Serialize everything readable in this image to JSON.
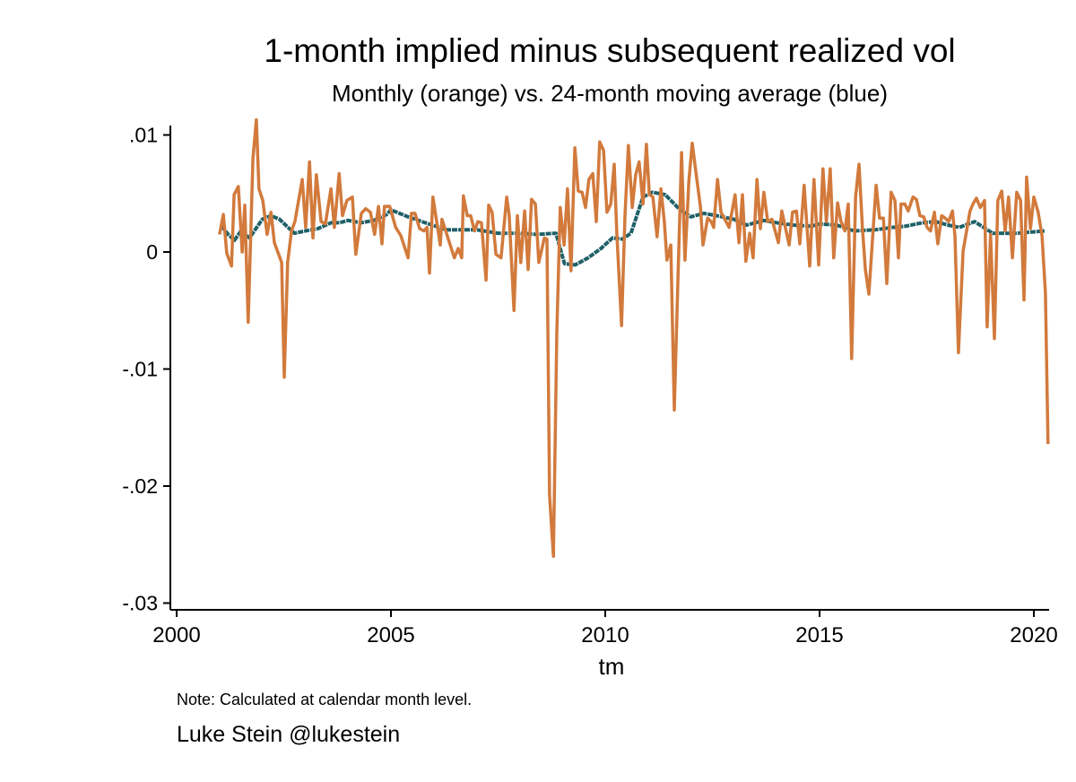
{
  "chart_data": {
    "type": "line",
    "title": "1-month implied minus subsequent realized vol",
    "subtitle": "Monthly (orange) vs. 24-month moving average (blue)",
    "xlabel": "tm",
    "ylabel": "",
    "xlim": [
      2000,
      2020.35
    ],
    "ylim": [
      -0.03,
      0.0115
    ],
    "xticks": [
      {
        "v": 2000,
        "label": "2000"
      },
      {
        "v": 2005,
        "label": "2005"
      },
      {
        "v": 2010,
        "label": "2010"
      },
      {
        "v": 2015,
        "label": "2015"
      },
      {
        "v": 2020,
        "label": "2020"
      }
    ],
    "yticks": [
      {
        "v": 0.01,
        "label": ".01"
      },
      {
        "v": 0,
        "label": "0"
      },
      {
        "v": -0.01,
        "label": "-.01"
      },
      {
        "v": -0.02,
        "label": "-.02"
      },
      {
        "v": -0.03,
        "label": "-.03"
      }
    ],
    "grid": false,
    "series": [
      {
        "name": "Monthly",
        "color": "#d27a3c",
        "points": [
          [
            2001.0,
            0.0015
          ],
          [
            2001.09,
            0.0032
          ],
          [
            2001.17,
            -0.0001
          ],
          [
            2001.28,
            -0.0012
          ],
          [
            2001.34,
            0.0049
          ],
          [
            2001.44,
            0.0056
          ],
          [
            2001.53,
            0.0
          ],
          [
            2001.59,
            0.004
          ],
          [
            2001.67,
            -0.006
          ],
          [
            2001.78,
            0.008
          ],
          [
            2001.86,
            0.0113
          ],
          [
            2001.92,
            0.0054
          ],
          [
            2002.01,
            0.0044
          ],
          [
            2002.11,
            0.0015
          ],
          [
            2002.2,
            0.0034
          ],
          [
            2002.28,
            0.0008
          ],
          [
            2002.45,
            -0.0009
          ],
          [
            2002.51,
            -0.0107
          ],
          [
            2002.59,
            -0.0009
          ],
          [
            2002.68,
            0.0018
          ],
          [
            2002.76,
            0.0026
          ],
          [
            2002.93,
            0.0062
          ],
          [
            2003.01,
            0.0021
          ],
          [
            2003.1,
            0.0077
          ],
          [
            2003.18,
            0.0012
          ],
          [
            2003.26,
            0.0066
          ],
          [
            2003.37,
            0.0026
          ],
          [
            2003.47,
            0.0024
          ],
          [
            2003.6,
            0.0054
          ],
          [
            2003.68,
            0.0021
          ],
          [
            2003.79,
            0.0067
          ],
          [
            2003.87,
            0.0031
          ],
          [
            2003.97,
            0.0044
          ],
          [
            2004.1,
            0.0047
          ],
          [
            2004.18,
            -0.0002
          ],
          [
            2004.31,
            0.0033
          ],
          [
            2004.41,
            0.0037
          ],
          [
            2004.52,
            0.0034
          ],
          [
            2004.62,
            0.0015
          ],
          [
            2004.71,
            0.0039
          ],
          [
            2004.79,
            0.0007
          ],
          [
            2004.85,
            0.0039
          ],
          [
            2004.97,
            0.0039
          ],
          [
            2005.11,
            0.0021
          ],
          [
            2005.23,
            0.0014
          ],
          [
            2005.4,
            -0.0005
          ],
          [
            2005.48,
            0.0033
          ],
          [
            2005.56,
            0.0033
          ],
          [
            2005.67,
            0.002
          ],
          [
            2005.77,
            0.0018
          ],
          [
            2005.84,
            0.0021
          ],
          [
            2005.9,
            -0.0018
          ],
          [
            2005.98,
            0.0047
          ],
          [
            2006.15,
            0.0006
          ],
          [
            2006.19,
            0.0028
          ],
          [
            2006.48,
            -0.0005
          ],
          [
            2006.57,
            0.0003
          ],
          [
            2006.65,
            -0.0005
          ],
          [
            2006.69,
            0.0048
          ],
          [
            2006.78,
            0.0031
          ],
          [
            2006.86,
            0.0031
          ],
          [
            2006.86,
            0.0031
          ],
          [
            2006.95,
            0.0018
          ],
          [
            2007.03,
            0.0026
          ],
          [
            2007.11,
            0.0025
          ],
          [
            2007.22,
            -0.0024
          ],
          [
            2007.28,
            0.004
          ],
          [
            2007.36,
            0.0034
          ],
          [
            2007.45,
            -0.0002
          ],
          [
            2007.57,
            -0.0005
          ],
          [
            2007.7,
            0.0047
          ],
          [
            2007.76,
            0.0031
          ],
          [
            2007.87,
            -0.005
          ],
          [
            2007.95,
            0.0031
          ],
          [
            2008.03,
            -0.0009
          ],
          [
            2008.12,
            0.0035
          ],
          [
            2008.2,
            -0.0015
          ],
          [
            2008.28,
            0.0045
          ],
          [
            2008.37,
            0.0041
          ],
          [
            2008.45,
            -0.0009
          ],
          [
            2008.58,
            0.0012
          ],
          [
            2008.64,
            0.0011
          ],
          [
            2008.7,
            -0.0208
          ],
          [
            2008.79,
            -0.026
          ],
          [
            2008.87,
            -0.0068
          ],
          [
            2008.95,
            0.0038
          ],
          [
            2009.04,
            0.0006
          ],
          [
            2009.12,
            0.0054
          ],
          [
            2009.2,
            -0.0016
          ],
          [
            2009.29,
            0.0089
          ],
          [
            2009.37,
            0.0052
          ],
          [
            2009.46,
            0.0051
          ],
          [
            2009.54,
            0.0038
          ],
          [
            2009.62,
            0.0062
          ],
          [
            2009.71,
            0.0067
          ],
          [
            2009.79,
            0.0026
          ],
          [
            2009.87,
            0.0094
          ],
          [
            2009.96,
            0.0087
          ],
          [
            2010.04,
            0.0034
          ],
          [
            2010.13,
            0.0041
          ],
          [
            2010.21,
            0.0075
          ],
          [
            2010.27,
            0.0016
          ],
          [
            2010.38,
            -0.0063
          ],
          [
            2010.46,
            0.0031
          ],
          [
            2010.54,
            0.0091
          ],
          [
            2010.63,
            0.0038
          ],
          [
            2010.71,
            0.0066
          ],
          [
            2010.79,
            0.0077
          ],
          [
            2010.88,
            0.0041
          ],
          [
            2010.96,
            0.0092
          ],
          [
            2011.03,
            0.0049
          ],
          [
            2011.11,
            0.0047
          ],
          [
            2011.21,
            0.0013
          ],
          [
            2011.3,
            0.0054
          ],
          [
            2011.38,
            0.0025
          ],
          [
            2011.44,
            -0.0007
          ],
          [
            2011.53,
            0.0006
          ],
          [
            2011.61,
            -0.0135
          ],
          [
            2011.7,
            -0.0017
          ],
          [
            2011.78,
            0.0085
          ],
          [
            2011.86,
            -0.0007
          ],
          [
            2011.95,
            0.006
          ],
          [
            2012.03,
            0.0093
          ],
          [
            2012.13,
            0.0064
          ],
          [
            2012.22,
            0.0039
          ],
          [
            2012.28,
            0.0006
          ],
          [
            2012.39,
            0.0029
          ],
          [
            2012.47,
            0.0026
          ],
          [
            2012.53,
            0.0021
          ],
          [
            2012.62,
            0.0062
          ],
          [
            2012.7,
            0.0034
          ],
          [
            2012.89,
            0.0021
          ],
          [
            2013.03,
            0.0049
          ],
          [
            2013.12,
            0.0008
          ],
          [
            2013.2,
            0.0049
          ],
          [
            2013.28,
            -0.0008
          ],
          [
            2013.37,
            0.0016
          ],
          [
            2013.45,
            -0.0005
          ],
          [
            2013.54,
            0.0062
          ],
          [
            2013.62,
            0.002
          ],
          [
            2013.7,
            0.0051
          ],
          [
            2013.79,
            0.0026
          ],
          [
            2013.89,
            0.0028
          ],
          [
            2014.04,
            0.0008
          ],
          [
            2014.12,
            0.0035
          ],
          [
            2014.29,
            0.0006
          ],
          [
            2014.37,
            0.0034
          ],
          [
            2014.46,
            0.0035
          ],
          [
            2014.54,
            0.0007
          ],
          [
            2014.64,
            0.0057
          ],
          [
            2014.77,
            -0.0012
          ],
          [
            2014.87,
            0.0062
          ],
          [
            2014.98,
            -0.0011
          ],
          [
            2015.08,
            0.0071
          ],
          [
            2015.16,
            0.0026
          ],
          [
            2015.25,
            0.0071
          ],
          [
            2015.33,
            -0.0005
          ],
          [
            2015.42,
            0.0042
          ],
          [
            2015.5,
            0.0026
          ],
          [
            2015.59,
            0.0018
          ],
          [
            2015.67,
            0.0041
          ],
          [
            2015.75,
            -0.0091
          ],
          [
            2015.84,
            0.0047
          ],
          [
            2015.92,
            0.0075
          ],
          [
            2016.0,
            0.0021
          ],
          [
            2016.07,
            -0.0015
          ],
          [
            2016.15,
            -0.0036
          ],
          [
            2016.23,
            0.0008
          ],
          [
            2016.32,
            0.0057
          ],
          [
            2016.4,
            0.0029
          ],
          [
            2016.49,
            0.0029
          ],
          [
            2016.57,
            -0.0027
          ],
          [
            2016.67,
            0.0051
          ],
          [
            2016.76,
            0.0044
          ],
          [
            2016.84,
            -0.0005
          ],
          [
            2016.9,
            0.0041
          ],
          [
            2016.99,
            0.0041
          ],
          [
            2017.07,
            0.0035
          ],
          [
            2017.18,
            0.0047
          ],
          [
            2017.26,
            0.0045
          ],
          [
            2017.34,
            0.0031
          ],
          [
            2017.43,
            0.003
          ],
          [
            2017.51,
            0.0021
          ],
          [
            2017.59,
            0.0018
          ],
          [
            2017.68,
            0.0034
          ],
          [
            2017.76,
            0.0007
          ],
          [
            2017.85,
            0.0031
          ],
          [
            2017.93,
            0.0029
          ],
          [
            2018.01,
            0.0026
          ],
          [
            2018.1,
            0.0035
          ],
          [
            2018.16,
            0.0014
          ],
          [
            2018.24,
            -0.0086
          ],
          [
            2018.35,
            0.0001
          ],
          [
            2018.43,
            0.0018
          ],
          [
            2018.51,
            0.0035
          ],
          [
            2018.58,
            0.0041
          ],
          [
            2018.66,
            0.0046
          ],
          [
            2018.75,
            0.0038
          ],
          [
            2018.85,
            0.0044
          ],
          [
            2018.91,
            -0.0064
          ],
          [
            2018.99,
            0.0015
          ],
          [
            2019.08,
            -0.0074
          ],
          [
            2019.16,
            0.0044
          ],
          [
            2019.25,
            0.0052
          ],
          [
            2019.33,
            0.0018
          ],
          [
            2019.41,
            0.0047
          ],
          [
            2019.5,
            -0.0005
          ],
          [
            2019.6,
            0.0051
          ],
          [
            2019.69,
            0.0044
          ],
          [
            2019.77,
            -0.0041
          ],
          [
            2019.83,
            0.0064
          ],
          [
            2019.92,
            0.002
          ],
          [
            2020.0,
            0.0047
          ],
          [
            2020.1,
            0.0034
          ],
          [
            2020.19,
            0.0014
          ],
          [
            2020.27,
            -0.0035
          ],
          [
            2020.33,
            -0.0164
          ]
        ]
      },
      {
        "name": "24-month moving average",
        "color": "#1f6068",
        "points": [
          [
            2001.05,
            0.0022
          ],
          [
            2001.2,
            0.0015
          ],
          [
            2001.35,
            0.001
          ],
          [
            2001.5,
            0.0018
          ],
          [
            2001.7,
            0.0012
          ],
          [
            2001.85,
            0.002
          ],
          [
            2002.0,
            0.0028
          ],
          [
            2002.2,
            0.0031
          ],
          [
            2002.4,
            0.0028
          ],
          [
            2002.6,
            0.0021
          ],
          [
            2002.75,
            0.0016
          ],
          [
            2003.0,
            0.0018
          ],
          [
            2003.3,
            0.002
          ],
          [
            2003.6,
            0.0025
          ],
          [
            2003.8,
            0.0025
          ],
          [
            2004.0,
            0.0027
          ],
          [
            2004.3,
            0.0025
          ],
          [
            2004.6,
            0.0027
          ],
          [
            2004.9,
            0.0032
          ],
          [
            2005.0,
            0.0036
          ],
          [
            2005.4,
            0.003
          ],
          [
            2005.8,
            0.0025
          ],
          [
            2006.3,
            0.0019
          ],
          [
            2007.0,
            0.0019
          ],
          [
            2007.5,
            0.0016
          ],
          [
            2008.0,
            0.0016
          ],
          [
            2008.4,
            0.0015
          ],
          [
            2008.85,
            0.0016
          ],
          [
            2009.05,
            -0.001
          ],
          [
            2009.3,
            -0.0011
          ],
          [
            2009.6,
            -0.0005
          ],
          [
            2009.9,
            0.0003
          ],
          [
            2010.17,
            0.0012
          ],
          [
            2010.4,
            0.0011
          ],
          [
            2010.6,
            0.0016
          ],
          [
            2010.88,
            0.0047
          ],
          [
            2011.1,
            0.0051
          ],
          [
            2011.4,
            0.0049
          ],
          [
            2011.72,
            0.0037
          ],
          [
            2012.0,
            0.003
          ],
          [
            2012.3,
            0.0033
          ],
          [
            2012.6,
            0.0031
          ],
          [
            2013.0,
            0.0028
          ],
          [
            2013.3,
            0.0023
          ],
          [
            2013.7,
            0.0027
          ],
          [
            2014.0,
            0.0025
          ],
          [
            2014.4,
            0.0023
          ],
          [
            2014.8,
            0.0022
          ],
          [
            2015.0,
            0.0024
          ],
          [
            2015.4,
            0.0023
          ],
          [
            2015.8,
            0.0018
          ],
          [
            2016.3,
            0.0019
          ],
          [
            2016.7,
            0.0021
          ],
          [
            2017.0,
            0.0022
          ],
          [
            2017.4,
            0.0025
          ],
          [
            2017.7,
            0.0026
          ],
          [
            2018.0,
            0.0023
          ],
          [
            2018.26,
            0.0021
          ],
          [
            2018.62,
            0.0026
          ],
          [
            2019.04,
            0.0016
          ],
          [
            2019.6,
            0.0016
          ],
          [
            2020.25,
            0.0018
          ]
        ]
      }
    ]
  },
  "note": "Note: Calculated at calendar month level.",
  "credit": "Luke Stein @lukestein"
}
